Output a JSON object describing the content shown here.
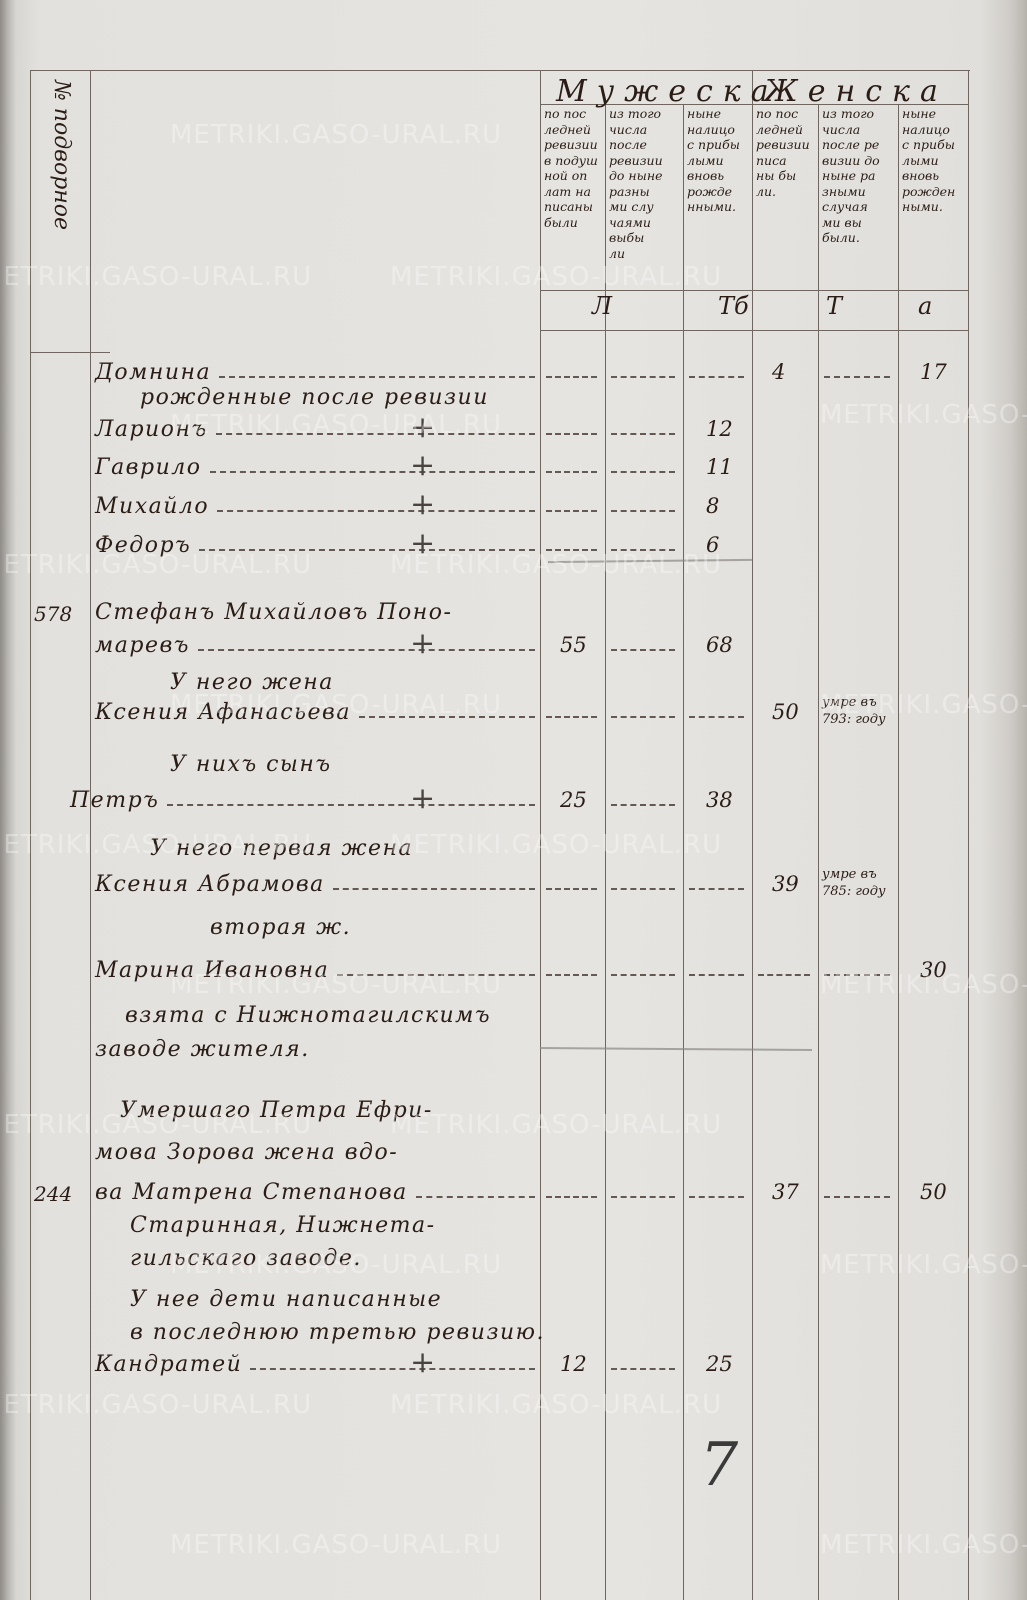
{
  "watermark": "METRIKI.GASO-URAL.RU",
  "side_heading": "№ подворное",
  "header": {
    "male": "Мужеска",
    "female": "Женска",
    "columns": [
      "по пос\nледней\nревизии\nв подуш\nной оп\nлат на\nписаны\nбыли",
      "из того\nчисла\nпосле\nревизии\nдо ныне\nразны\nми слу\nчаями\nвыбы\nли",
      "ныне\nналицо\nс прибы\nлыми\nвновь\nрожде\nнными.",
      "по пос\nледней\nревизии\nписа\nны бы\nли.",
      "из того\nчисла\nпосле ре\nвизии до\nныне ра\nзными\nслучая\nми вы\nбыли.",
      "ныне\nналицо\nс прибы\nлыми\nвновь\nрожден\nными."
    ],
    "totals": [
      "Л",
      "Тб",
      "Т",
      "а"
    ]
  },
  "entries": [
    {
      "text": "Домнина",
      "f1": "4",
      "f3": "17",
      "dash": true
    },
    {
      "text": "рожденные после ревизии"
    },
    {
      "text": "Ларионъ",
      "cross": true,
      "m3": "12",
      "dash": true
    },
    {
      "text": "Гаврило",
      "cross": true,
      "m3": "11",
      "dash": true
    },
    {
      "text": "Михайло",
      "cross": true,
      "m3": "8",
      "dash": true
    },
    {
      "text": "Федоръ",
      "cross": true,
      "m3": "6",
      "dash": true
    },
    {
      "num": "578",
      "text": "Стефанъ Михайловъ Поно-"
    },
    {
      "text": "маревъ",
      "cross": true,
      "m1": "55",
      "m3": "68",
      "dash": true
    },
    {
      "text": "У него жена"
    },
    {
      "text": "Ксения Афанасьева",
      "f1": "50",
      "f2": "умре въ\n793: году",
      "dash": true
    },
    {
      "text": "У нихъ сынъ"
    },
    {
      "text": "Петръ",
      "cross": true,
      "m1": "25",
      "m3": "38",
      "dash": true
    },
    {
      "text": "У него первая жена"
    },
    {
      "text": "Ксения Абрамова",
      "f1": "39",
      "f2": "умре въ\n785: году",
      "dash": true
    },
    {
      "text": "вторая ж."
    },
    {
      "text": "Марина Ивановна",
      "f3": "30",
      "dash": true
    },
    {
      "text": "взята с Нижнотагилскимъ"
    },
    {
      "text": "заводе жителя."
    },
    {
      "text": "Умершаго Петра Ефри-"
    },
    {
      "text": "мова Зорова жена вдо-"
    },
    {
      "num": "244",
      "text": "ва Матрена Степанова",
      "f1": "37",
      "f3": "50",
      "dash": true
    },
    {
      "text": "Старинная, Нижнета-"
    },
    {
      "text": "гильскаго заводе."
    },
    {
      "text": "У нее дети написанные"
    },
    {
      "text": "в последнюю третью ревизию."
    },
    {
      "text": "Кандратей",
      "cross": true,
      "m1": "12",
      "m3": "25",
      "dash": true
    }
  ],
  "page_number": "7"
}
